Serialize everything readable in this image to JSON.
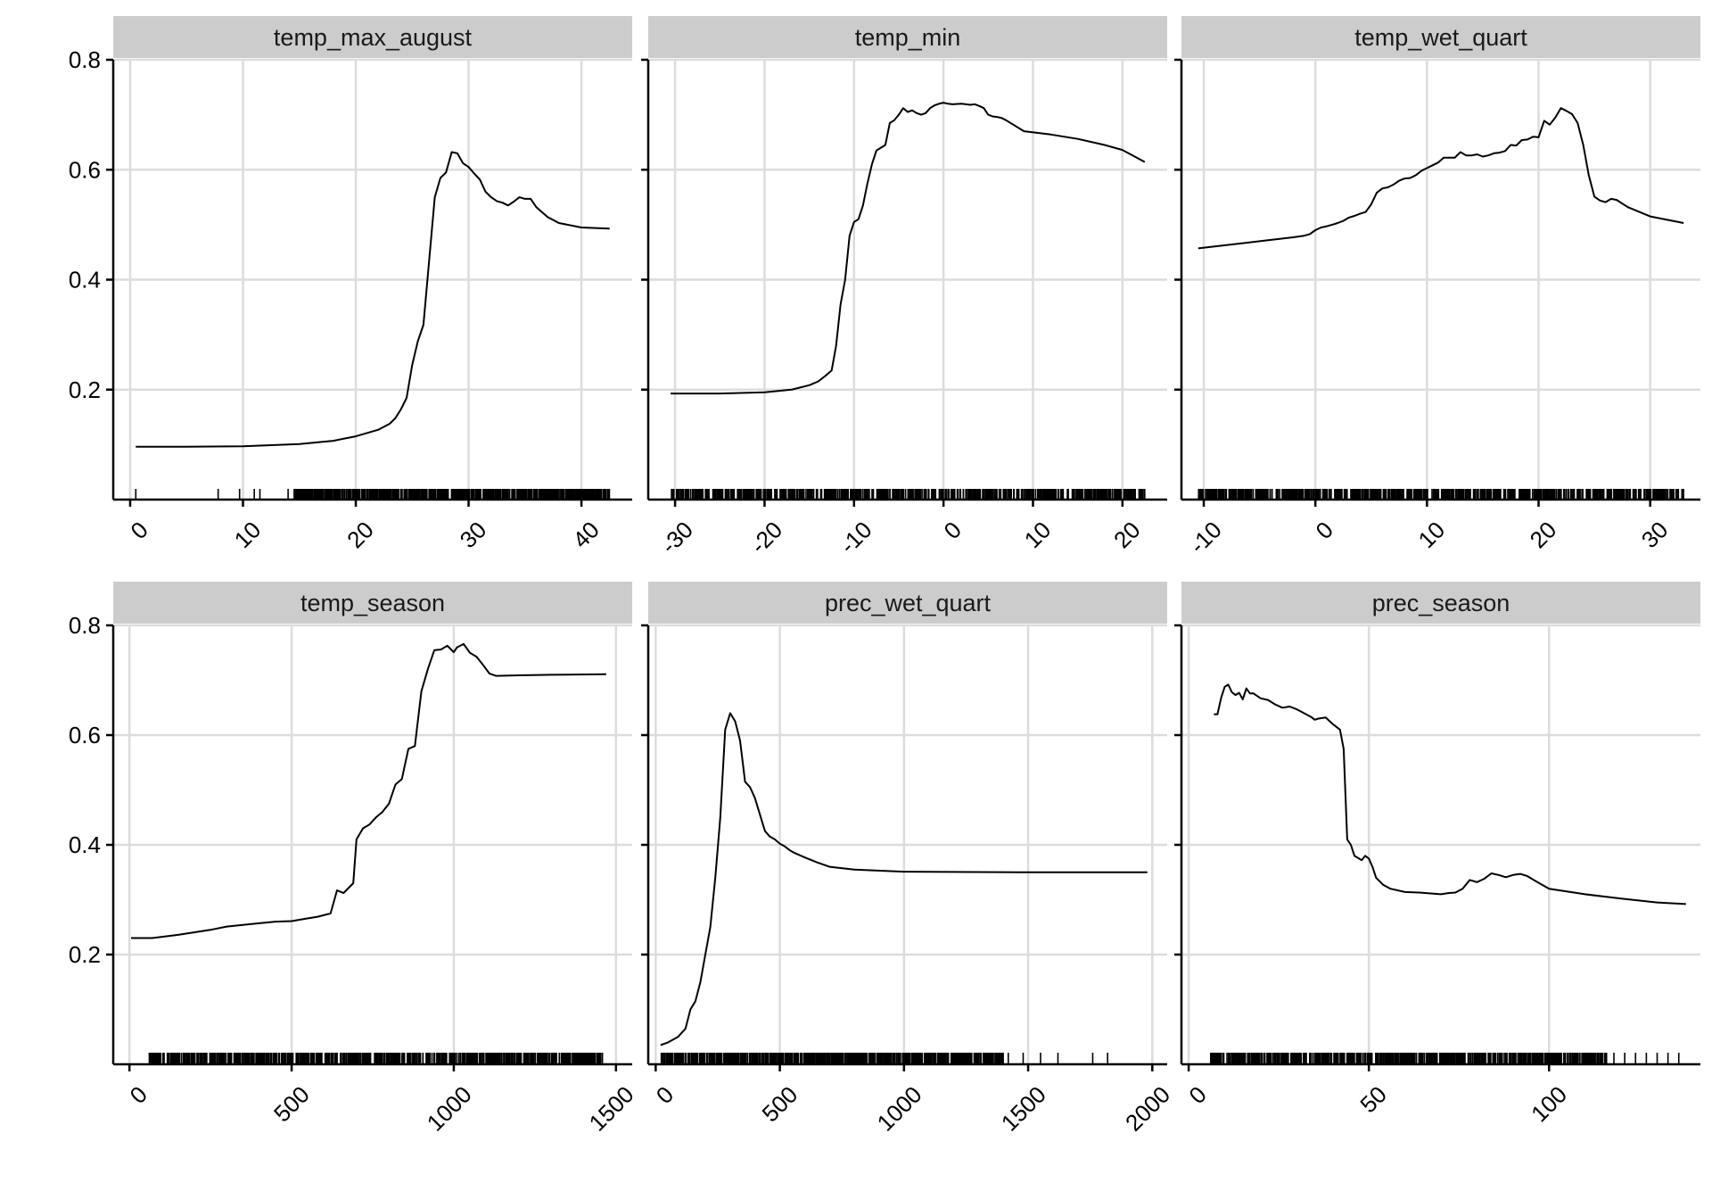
{
  "colors": {
    "strip_bg": "#cccccc",
    "grid": "#dcdcdc",
    "line": "#000000",
    "axis": "#000000"
  },
  "chart_data": [
    {
      "type": "line",
      "title": "temp_max_august",
      "xlim": [
        -1.5,
        44.5
      ],
      "ylim": [
        0.0,
        0.8
      ],
      "xticks": [
        0,
        10,
        20,
        30,
        40
      ],
      "yticks": [
        0.2,
        0.4,
        0.6,
        0.8
      ],
      "xtick_labels": [
        "0",
        "10",
        "20",
        "30",
        "40"
      ],
      "x": [
        0.5,
        5,
        10,
        15,
        18,
        20,
        22,
        23,
        23.5,
        24,
        24.5,
        25,
        25.5,
        26,
        26.5,
        27,
        27.5,
        28,
        28.5,
        29,
        29.5,
        30,
        30.5,
        31,
        31.5,
        32,
        32.5,
        33,
        33.5,
        34,
        34.5,
        35,
        35.5,
        36,
        37,
        38,
        40,
        42.5
      ],
      "y": [
        0.096,
        0.096,
        0.097,
        0.101,
        0.107,
        0.115,
        0.127,
        0.138,
        0.148,
        0.164,
        0.185,
        0.245,
        0.288,
        0.318,
        0.435,
        0.55,
        0.585,
        0.595,
        0.632,
        0.63,
        0.612,
        0.605,
        0.593,
        0.582,
        0.56,
        0.55,
        0.543,
        0.54,
        0.535,
        0.542,
        0.55,
        0.547,
        0.547,
        0.532,
        0.514,
        0.503,
        0.495,
        0.493
      ],
      "rug": [
        0.5,
        7.8,
        9.7,
        11,
        11.5,
        14
      ]
    },
    {
      "type": "line",
      "title": "temp_min",
      "xlim": [
        -33,
        25
      ],
      "ylim": [
        0.0,
        0.8
      ],
      "xticks": [
        -30,
        -20,
        -10,
        0,
        10,
        20
      ],
      "yticks": [
        0.2,
        0.4,
        0.6,
        0.8
      ],
      "xtick_labels": [
        "-30",
        "-20",
        "-10",
        "0",
        "10",
        "20"
      ],
      "x": [
        -30.5,
        -25,
        -20,
        -17,
        -15,
        -14,
        -13.2,
        -12.5,
        -12,
        -11.5,
        -11,
        -10.5,
        -10,
        -9.5,
        -9,
        -8.5,
        -8,
        -7.5,
        -7,
        -6.5,
        -6,
        -5.5,
        -5,
        -4.5,
        -4,
        -3.5,
        -3,
        -2.5,
        -2,
        -1.5,
        -1,
        -0.5,
        0,
        0.5,
        1,
        2,
        3,
        3.5,
        4,
        4.5,
        5,
        5.5,
        6,
        6.5,
        7,
        9,
        12,
        15,
        18,
        20,
        22.5
      ],
      "y": [
        0.193,
        0.193,
        0.195,
        0.2,
        0.208,
        0.215,
        0.225,
        0.235,
        0.28,
        0.355,
        0.4,
        0.48,
        0.505,
        0.51,
        0.535,
        0.575,
        0.61,
        0.635,
        0.64,
        0.645,
        0.685,
        0.69,
        0.7,
        0.712,
        0.705,
        0.708,
        0.703,
        0.7,
        0.703,
        0.712,
        0.717,
        0.72,
        0.722,
        0.72,
        0.719,
        0.72,
        0.718,
        0.719,
        0.716,
        0.712,
        0.7,
        0.697,
        0.696,
        0.694,
        0.69,
        0.67,
        0.664,
        0.656,
        0.645,
        0.636,
        0.614
      ]
    },
    {
      "type": "line",
      "title": "temp_wet_quart",
      "xlim": [
        -12,
        34.5
      ],
      "ylim": [
        0.0,
        0.8
      ],
      "xticks": [
        -10,
        0,
        10,
        20,
        30
      ],
      "yticks": [
        0.2,
        0.4,
        0.6,
        0.8
      ],
      "xtick_labels": [
        "-10",
        "0",
        "10",
        "20",
        "30"
      ],
      "x": [
        -10.5,
        -5,
        -2,
        -1,
        -0.5,
        0,
        0.5,
        1,
        1.5,
        2,
        2.5,
        3,
        3.5,
        4,
        4.5,
        5,
        5.5,
        6,
        6.5,
        7,
        7.5,
        8,
        8.5,
        9,
        9.5,
        10,
        10.5,
        11,
        11.5,
        12,
        12.5,
        13,
        13.5,
        14,
        14.5,
        15,
        15.5,
        16,
        16.5,
        17,
        17.5,
        18,
        18.5,
        19,
        19.5,
        20,
        20.5,
        21,
        21.5,
        22,
        22.5,
        23,
        23.5,
        24,
        24.5,
        25,
        25.5,
        26,
        26.5,
        27,
        28,
        30,
        33
      ],
      "y": [
        0.457,
        0.47,
        0.477,
        0.48,
        0.483,
        0.49,
        0.495,
        0.497,
        0.5,
        0.503,
        0.507,
        0.513,
        0.516,
        0.52,
        0.523,
        0.537,
        0.558,
        0.566,
        0.568,
        0.573,
        0.58,
        0.584,
        0.585,
        0.59,
        0.598,
        0.603,
        0.608,
        0.613,
        0.622,
        0.622,
        0.622,
        0.632,
        0.626,
        0.626,
        0.628,
        0.624,
        0.626,
        0.63,
        0.631,
        0.634,
        0.645,
        0.644,
        0.654,
        0.655,
        0.66,
        0.659,
        0.689,
        0.682,
        0.695,
        0.712,
        0.707,
        0.701,
        0.685,
        0.645,
        0.59,
        0.551,
        0.544,
        0.541,
        0.547,
        0.545,
        0.532,
        0.515,
        0.503
      ]
    },
    {
      "type": "line",
      "title": "temp_season",
      "xlim": [
        -50,
        1550
      ],
      "ylim": [
        0.0,
        0.8
      ],
      "xticks": [
        0,
        500,
        1000,
        1500
      ],
      "yticks": [
        0.2,
        0.4,
        0.6,
        0.8
      ],
      "xtick_labels": [
        "0",
        "500",
        "1000",
        "1500"
      ],
      "x": [
        5,
        70,
        150,
        250,
        300,
        350,
        400,
        450,
        500,
        540,
        580,
        620,
        640,
        660,
        690,
        700,
        720,
        740,
        760,
        780,
        800,
        820,
        840,
        860,
        880,
        900,
        920,
        940,
        960,
        980,
        1000,
        1010,
        1030,
        1050,
        1070,
        1090,
        1110,
        1130,
        1200,
        1300,
        1470
      ],
      "y": [
        0.23,
        0.23,
        0.236,
        0.245,
        0.251,
        0.254,
        0.257,
        0.26,
        0.261,
        0.265,
        0.269,
        0.275,
        0.317,
        0.312,
        0.33,
        0.41,
        0.43,
        0.437,
        0.45,
        0.46,
        0.475,
        0.51,
        0.52,
        0.575,
        0.58,
        0.68,
        0.72,
        0.755,
        0.756,
        0.763,
        0.751,
        0.76,
        0.766,
        0.75,
        0.743,
        0.728,
        0.712,
        0.708,
        0.709,
        0.71,
        0.711
      ]
    },
    {
      "type": "line",
      "title": "prec_wet_quart",
      "xlim": [
        -30,
        2060
      ],
      "ylim": [
        0.0,
        0.8
      ],
      "xticks": [
        0,
        500,
        1000,
        1500,
        2000
      ],
      "yticks": [
        0.2,
        0.4,
        0.6,
        0.8
      ],
      "xtick_labels": [
        "0",
        "500",
        "1000",
        "1500",
        "2000"
      ],
      "x": [
        20,
        50,
        90,
        120,
        140,
        160,
        180,
        200,
        220,
        240,
        260,
        280,
        300,
        320,
        340,
        360,
        380,
        400,
        420,
        440,
        460,
        480,
        500,
        520,
        540,
        560,
        600,
        650,
        700,
        800,
        1000,
        1500,
        1980
      ],
      "y": [
        0.035,
        0.04,
        0.05,
        0.065,
        0.1,
        0.115,
        0.15,
        0.2,
        0.25,
        0.34,
        0.45,
        0.61,
        0.64,
        0.625,
        0.59,
        0.515,
        0.505,
        0.485,
        0.455,
        0.425,
        0.415,
        0.41,
        0.402,
        0.397,
        0.39,
        0.385,
        0.377,
        0.368,
        0.36,
        0.355,
        0.351,
        0.35,
        0.35
      ],
      "rug": [
        1420,
        1480,
        1550,
        1620,
        1760,
        1820
      ]
    },
    {
      "type": "line",
      "title": "prec_season",
      "xlim": [
        -2,
        142
      ],
      "ylim": [
        0.0,
        0.8
      ],
      "xticks": [
        0,
        50,
        100
      ],
      "yticks": [
        0.2,
        0.4,
        0.6,
        0.8
      ],
      "xtick_labels": [
        "0",
        "50",
        "100"
      ],
      "x": [
        7,
        8,
        9,
        10,
        11,
        12,
        13,
        14,
        15,
        16,
        17,
        18,
        20,
        22,
        24,
        26,
        28,
        30,
        32,
        34,
        35,
        36,
        38,
        40,
        42,
        43,
        44,
        45,
        46,
        48,
        49,
        50,
        51,
        52,
        54,
        56,
        60,
        64,
        68,
        70,
        72,
        74,
        76,
        78,
        80,
        82,
        84,
        86,
        88,
        90,
        92,
        94,
        96,
        100,
        110,
        120,
        130,
        138
      ],
      "y": [
        0.638,
        0.638,
        0.668,
        0.688,
        0.692,
        0.678,
        0.673,
        0.677,
        0.665,
        0.685,
        0.676,
        0.676,
        0.667,
        0.664,
        0.656,
        0.65,
        0.652,
        0.647,
        0.64,
        0.633,
        0.628,
        0.63,
        0.632,
        0.62,
        0.61,
        0.575,
        0.41,
        0.4,
        0.38,
        0.372,
        0.38,
        0.375,
        0.36,
        0.34,
        0.327,
        0.32,
        0.314,
        0.313,
        0.311,
        0.31,
        0.312,
        0.313,
        0.32,
        0.336,
        0.332,
        0.338,
        0.348,
        0.345,
        0.341,
        0.345,
        0.347,
        0.343,
        0.335,
        0.32,
        0.31,
        0.302,
        0.295,
        0.292
      ],
      "rug": [
        118,
        121,
        124,
        127,
        130,
        133,
        136
      ]
    }
  ]
}
